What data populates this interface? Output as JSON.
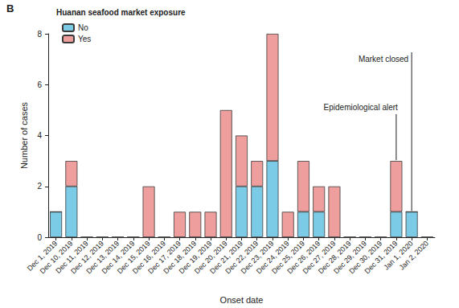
{
  "chart_data": {
    "type": "bar",
    "panel_label": "B",
    "x_label": "Onset date",
    "y_label": "Number of cases",
    "legend_title": "Huanan seafood market exposure",
    "legend": "top-left",
    "stacked": true,
    "grid": false,
    "categories": [
      "Dec 1, 2019",
      "Dec 10, 2019",
      "Dec 11, 2019",
      "Dec 12, 2019",
      "Dec 13, 2019",
      "Dec 14, 2019",
      "Dec 15, 2019",
      "Dec 16, 2019",
      "Dec 17, 2019",
      "Dec 18, 2019",
      "Dec 19, 2019",
      "Dec 20, 2019",
      "Dec 21, 2019",
      "Dec 22, 2019",
      "Dec 23, 2019",
      "Dec 24, 2019",
      "Dec 25, 2019",
      "Dec 26, 2019",
      "Dec 27, 2019",
      "Dec 28, 2019",
      "Dec 29, 2019",
      "Dec 30, 2019",
      "Dec 31, 2019",
      "Jan 1, 2020",
      "Jan 2, 2020"
    ],
    "series": [
      {
        "name": "No",
        "color": "#7ccbe6",
        "values": [
          1,
          2,
          0,
          0,
          0,
          0,
          0,
          0,
          0,
          0,
          0,
          0,
          2,
          2,
          3,
          0,
          1,
          1,
          0,
          0,
          0,
          0,
          1,
          1,
          0
        ]
      },
      {
        "name": "Yes",
        "color": "#ee9f9d",
        "values": [
          0,
          1,
          0,
          0,
          0,
          0,
          2,
          0,
          1,
          1,
          1,
          5,
          2,
          1,
          5,
          1,
          2,
          1,
          2,
          0,
          0,
          0,
          2,
          0,
          0
        ]
      }
    ],
    "ylim": [
      0,
      8
    ],
    "yticks": [
      0,
      2,
      4,
      6,
      8
    ],
    "annotations": [
      {
        "text": "Epidemiological alert",
        "category": "Dec 31, 2019"
      },
      {
        "text": "Market closed",
        "category": "Jan 1, 2020"
      }
    ]
  }
}
